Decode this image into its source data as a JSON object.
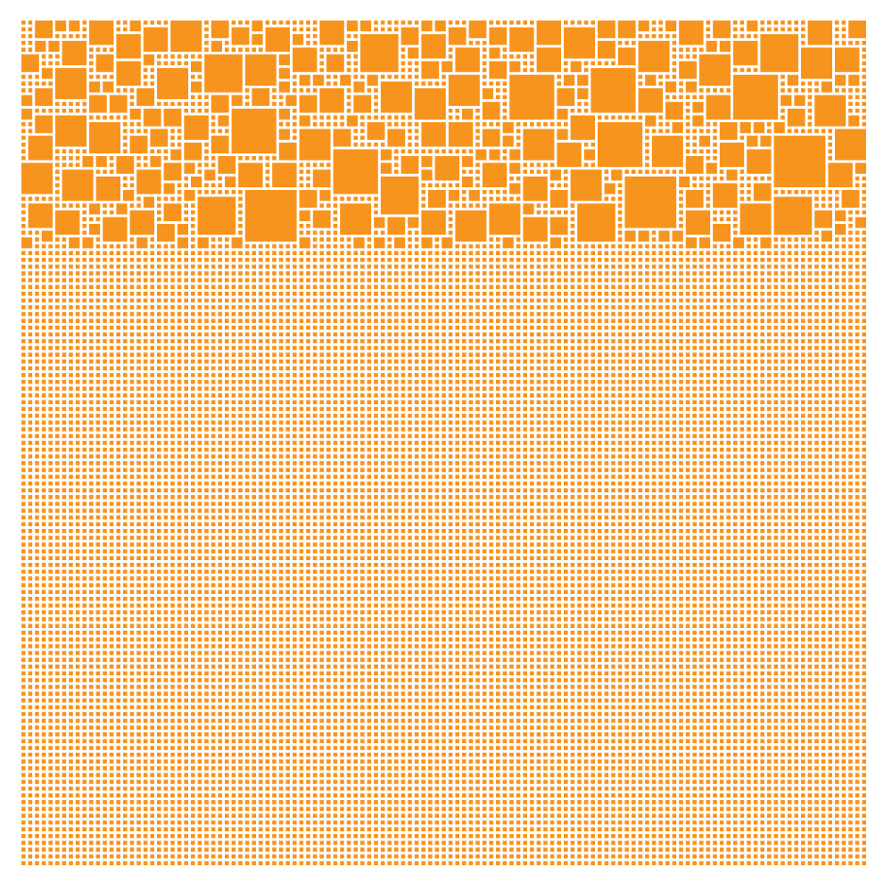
{
  "artwork": {
    "kind": "square-packing-pattern",
    "fill_color": "#F7941D",
    "background_color": "#FFFFFF",
    "grid_columns": 125,
    "grid_rows": 125
  }
}
